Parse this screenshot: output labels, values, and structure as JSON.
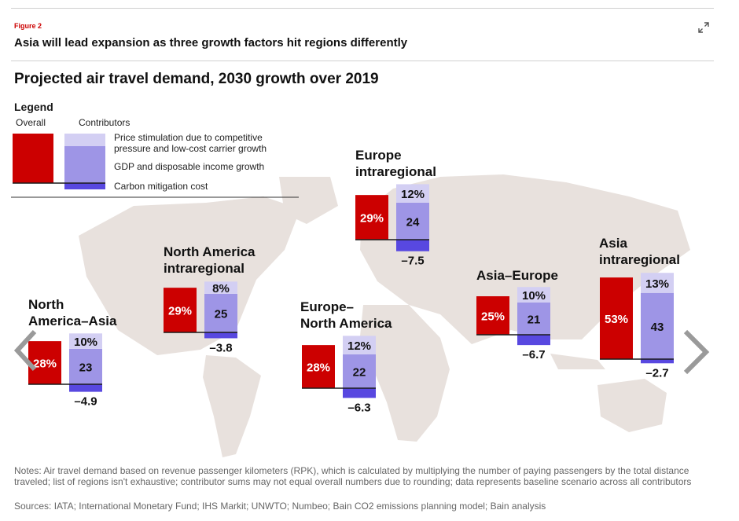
{
  "figure_label": "Figure 2",
  "figure_title": "Asia will lead expansion as three growth factors hit regions differently",
  "colors": {
    "overall": "#cc0000",
    "price": "#d3cff3",
    "gdp": "#9e95e6",
    "carbon": "#5848e0",
    "map": "#e8e1dd",
    "axis": "#1a1a1a"
  },
  "legend": {
    "title": "Legend",
    "overall_label": "Overall",
    "contributors_label": "Contributors",
    "price_label": "Price stimulation due to competitive pressure and low-cost carrier growth",
    "gdp_label": "GDP and disposable income growth",
    "carbon_label": "Carbon mitigation cost"
  },
  "chart_data": {
    "type": "bar",
    "title": "Projected air travel demand, 2030 growth over 2019",
    "unit": "%",
    "series": [
      {
        "name": "Overall",
        "key": "overall"
      },
      {
        "name": "Price stimulation due to competitive pressure and low-cost carrier growth",
        "key": "price"
      },
      {
        "name": "GDP and disposable income growth",
        "key": "gdp"
      },
      {
        "name": "Carbon mitigation cost",
        "key": "carbon"
      }
    ],
    "regions": [
      {
        "name": [
          "North",
          "America–Asia"
        ],
        "overall": 28,
        "overall_label": "28%",
        "price": 10,
        "price_label": "10%",
        "gdp": 23,
        "gdp_label": "23",
        "carbon": -4.9,
        "carbon_label": "–4.9"
      },
      {
        "name": [
          "North America",
          "intraregional"
        ],
        "overall": 29,
        "overall_label": "29%",
        "price": 8,
        "price_label": "8%",
        "gdp": 25,
        "gdp_label": "25",
        "carbon": -3.8,
        "carbon_label": "–3.8"
      },
      {
        "name": [
          "Europe–",
          "North America"
        ],
        "overall": 28,
        "overall_label": "28%",
        "price": 12,
        "price_label": "12%",
        "gdp": 22,
        "gdp_label": "22",
        "carbon": -6.3,
        "carbon_label": "–6.3"
      },
      {
        "name": [
          "Europe",
          "intraregional"
        ],
        "overall": 29,
        "overall_label": "29%",
        "price": 12,
        "price_label": "12%",
        "gdp": 24,
        "gdp_label": "24",
        "carbon": -7.5,
        "carbon_label": "–7.5"
      },
      {
        "name": [
          "Asia–Europe"
        ],
        "overall": 25,
        "overall_label": "25%",
        "price": 10,
        "price_label": "10%",
        "gdp": 21,
        "gdp_label": "21",
        "carbon": -6.7,
        "carbon_label": "–6.7"
      },
      {
        "name": [
          "Asia",
          "intraregional"
        ],
        "overall": 53,
        "overall_label": "53%",
        "price": 13,
        "price_label": "13%",
        "gdp": 43,
        "gdp_label": "43",
        "carbon": -2.7,
        "carbon_label": "–2.7"
      }
    ]
  },
  "nav": {
    "prev_icon": "chevron-left-icon",
    "next_icon": "chevron-right-icon"
  },
  "notes": "Notes: Air travel demand based on revenue passenger kilometers (RPK), which is calculated by multiplying the number of paying passengers by the total distance traveled; list of regions isn't exhaustive; contributor sums may not equal overall numbers due to rounding; data represents baseline scenario across all contributors",
  "sources": "Sources: IATA; International Monetary Fund; IHS Markit; UNWTO; Numbeo; Bain CO2 emissions planning model; Bain analysis"
}
